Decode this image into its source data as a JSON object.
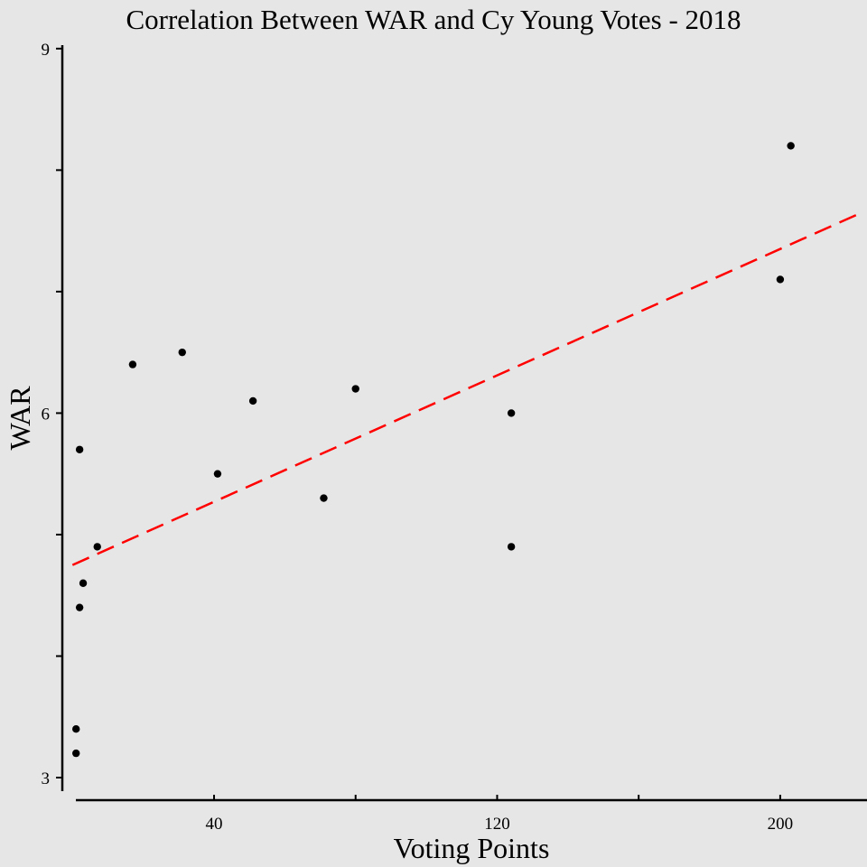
{
  "chart_data": {
    "type": "scatter",
    "title": "Correlation Between WAR and Cy Young Votes - 2018",
    "xlabel": "Voting Points",
    "ylabel": "WAR",
    "xlim": [
      0,
      223
    ],
    "ylim": [
      2.9,
      9.05
    ],
    "x_ticks": [
      0,
      40,
      80,
      120,
      160,
      200
    ],
    "x_tick_labels": [
      "",
      "40",
      "",
      "120",
      "",
      "200"
    ],
    "y_ticks": [
      3,
      4,
      5,
      6,
      7,
      8,
      9
    ],
    "y_tick_labels": [
      "3",
      "",
      "",
      "6",
      "",
      "",
      "9"
    ],
    "grid": false,
    "legend": "none",
    "colors": {
      "background": "#e6e6e6",
      "points": "#000000",
      "trendline": "#ff0000"
    },
    "series": [
      {
        "x": [
          1,
          1,
          2,
          2,
          3,
          7,
          17,
          31,
          41,
          51,
          71,
          80,
          124,
          124,
          200,
          203
        ],
        "y": [
          3.2,
          3.4,
          4.4,
          5.7,
          4.6,
          4.9,
          6.4,
          6.5,
          5.5,
          6.1,
          5.3,
          6.2,
          6.0,
          4.9,
          7.1,
          8.2
        ]
      }
    ],
    "trendline": {
      "style": "dashed",
      "x": [
        0,
        223
      ],
      "y": [
        4.75,
        7.65
      ]
    }
  }
}
